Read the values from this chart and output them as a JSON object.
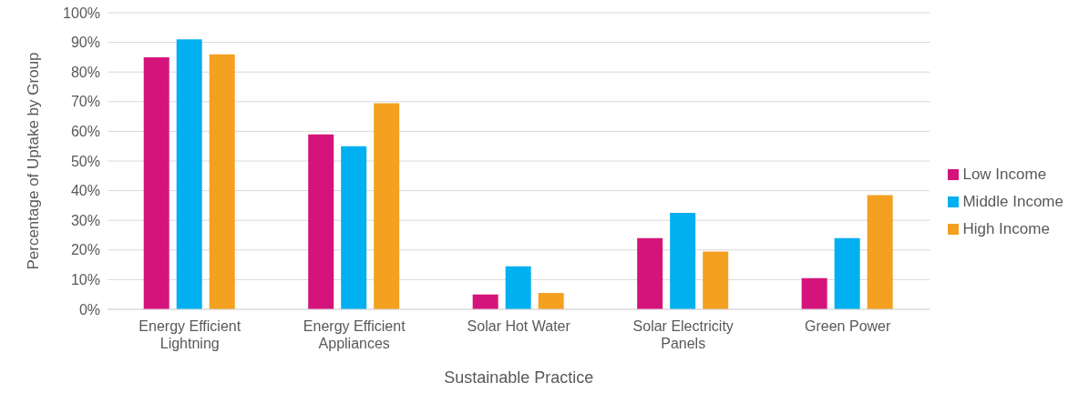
{
  "chart_data": {
    "type": "bar",
    "xlabel": "Sustainable Practice",
    "ylabel": "Percentage of Uptake by Group",
    "categories": [
      "Energy Efficient Lightning",
      "Energy Efficient Appliances",
      "Solar Hot Water",
      "Solar Electricity Panels",
      "Green Power"
    ],
    "series": [
      {
        "name": "Low Income",
        "color": "#d4147a",
        "values": [
          85,
          59,
          5,
          24,
          10.5
        ]
      },
      {
        "name": "Middle Income",
        "color": "#00b0f0",
        "values": [
          91,
          55,
          14.5,
          32.5,
          24
        ]
      },
      {
        "name": "High Income",
        "color": "#f4a020",
        "values": [
          86,
          69.5,
          5.5,
          19.5,
          38.5
        ]
      }
    ],
    "ylim": [
      0,
      100
    ],
    "yticks": [
      {
        "value": 0,
        "label": "0%"
      },
      {
        "value": 10,
        "label": "10%"
      },
      {
        "value": 20,
        "label": "20%"
      },
      {
        "value": 30,
        "label": "30%"
      },
      {
        "value": 40,
        "label": "40%"
      },
      {
        "value": 50,
        "label": "50%"
      },
      {
        "value": 60,
        "label": "60%"
      },
      {
        "value": 70,
        "label": "70%"
      },
      {
        "value": 80,
        "label": "80%"
      },
      {
        "value": 90,
        "label": "90%"
      },
      {
        "value": 100,
        "label": "100%"
      }
    ],
    "grid": "y",
    "legend": "right"
  }
}
